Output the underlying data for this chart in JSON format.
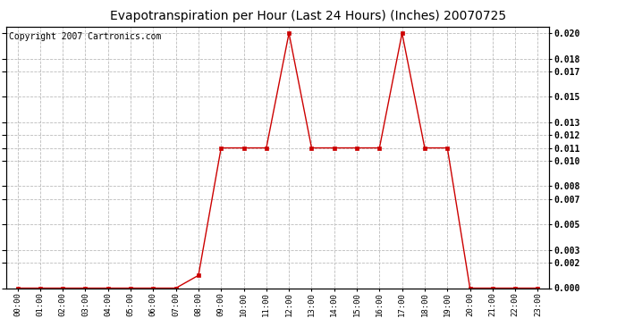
{
  "title": "Evapotranspiration per Hour (Last 24 Hours) (Inches) 20070725",
  "copyright": "Copyright 2007 Cartronics.com",
  "hours": [
    "00:00",
    "01:00",
    "02:00",
    "03:00",
    "04:00",
    "05:00",
    "06:00",
    "07:00",
    "08:00",
    "09:00",
    "10:00",
    "11:00",
    "12:00",
    "13:00",
    "14:00",
    "15:00",
    "16:00",
    "17:00",
    "18:00",
    "19:00",
    "20:00",
    "21:00",
    "22:00",
    "23:00"
  ],
  "values": [
    0.0,
    0.0,
    0.0,
    0.0,
    0.0,
    0.0,
    0.0,
    0.0,
    0.001,
    0.011,
    0.011,
    0.011,
    0.02,
    0.011,
    0.011,
    0.011,
    0.011,
    0.02,
    0.011,
    0.011,
    0.0,
    0.0,
    0.0,
    0.0
  ],
  "line_color": "#cc0000",
  "marker": "s",
  "marker_size": 2.5,
  "bg_color": "#ffffff",
  "grid_color": "#bbbbbb",
  "ylim": [
    0.0,
    0.0205
  ],
  "yticks": [
    0.0,
    0.002,
    0.003,
    0.005,
    0.007,
    0.008,
    0.01,
    0.011,
    0.012,
    0.013,
    0.015,
    0.017,
    0.018,
    0.02
  ],
  "title_fontsize": 10,
  "copyright_fontsize": 7
}
